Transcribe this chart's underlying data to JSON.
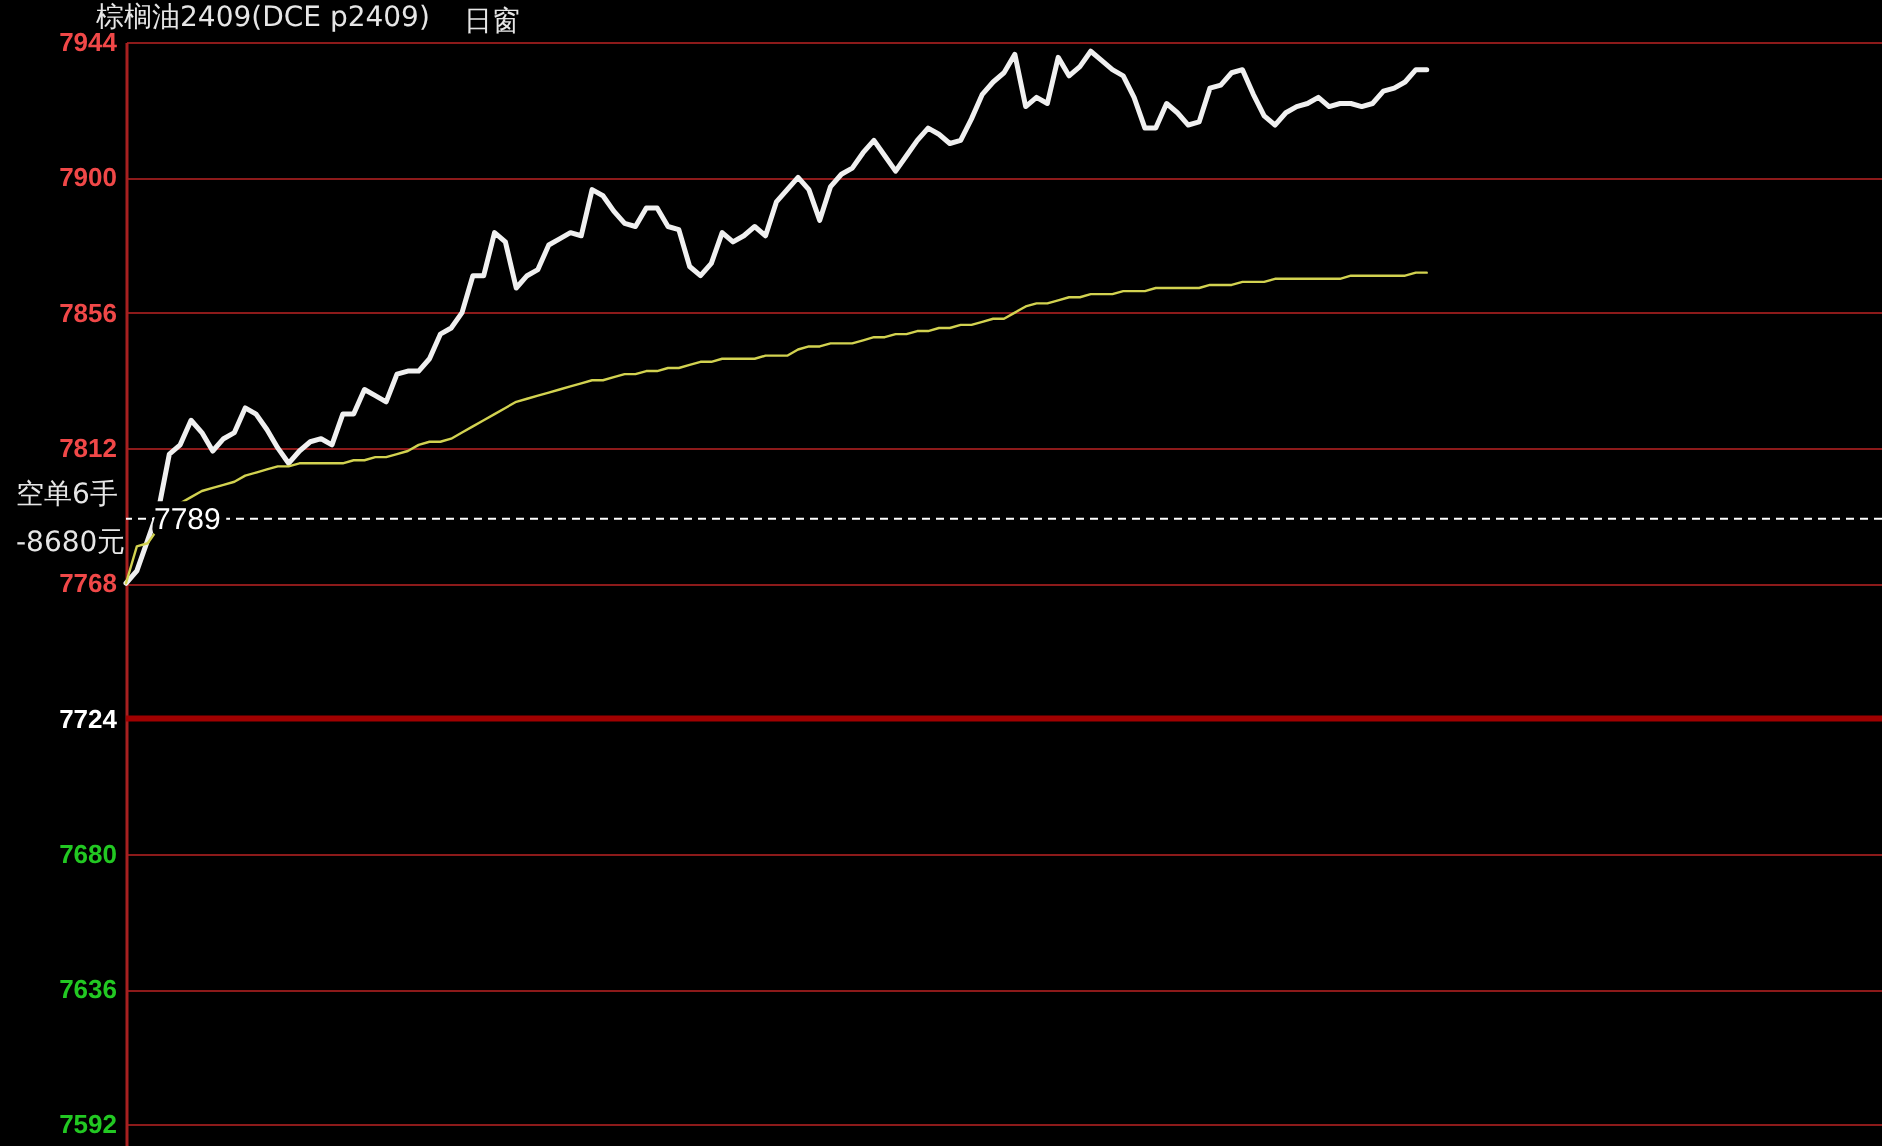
{
  "chart_data": {
    "type": "line",
    "title": "棕榈油2409(DCE p2409)",
    "categories": [
      null,
      null,
      null,
      null,
      null,
      null,
      null,
      null,
      null,
      null,
      null,
      null,
      null,
      null,
      null,
      null,
      null,
      null,
      null,
      null,
      null,
      null,
      null,
      null,
      null,
      null,
      null,
      null,
      null,
      null,
      null,
      null,
      null,
      null,
      null,
      null,
      null,
      null,
      null,
      null,
      null,
      null,
      null,
      null,
      null,
      null,
      null,
      null,
      null,
      null,
      null,
      null,
      null,
      null,
      null,
      null,
      null,
      null,
      null,
      null,
      null,
      null,
      null,
      null,
      null,
      null,
      null,
      null,
      null,
      null,
      null,
      null,
      null,
      null,
      null,
      null,
      null,
      null,
      null,
      null,
      null,
      null,
      null,
      null,
      null,
      null,
      null,
      null,
      null,
      null,
      null,
      null,
      null,
      null,
      null,
      null,
      null,
      null,
      null,
      null,
      null,
      null,
      null,
      null,
      null,
      null,
      null,
      null,
      null,
      null,
      null,
      null,
      null,
      null,
      null,
      null,
      null,
      null,
      null,
      null,
      null,
      null,
      null,
      null,
      null,
      null,
      null,
      null,
      null,
      null,
      null,
      null,
      null,
      null,
      null,
      null,
      null,
      null,
      null,
      null,
      null,
      null,
      null,
      null,
      null,
      null,
      null,
      null,
      null,
      null,
      null,
      null,
      null,
      null,
      null,
      null,
      null,
      null,
      null,
      null,
      null,
      null,
      null
    ],
    "series": [
      {
        "color": "#f0f0f0",
        "values": [
          7768,
          7772,
          7782,
          7792,
          7810,
          7813,
          7821,
          7817,
          7811,
          7815,
          7817,
          7825,
          7823,
          7818,
          7812,
          7807,
          7811,
          7814,
          7815,
          7813,
          7823,
          7823,
          7831,
          7829,
          7827,
          7836,
          7837,
          7837,
          7841,
          7849,
          7851,
          7856,
          7868,
          7868,
          7882,
          7879,
          7864,
          7868,
          7870,
          7878,
          7880,
          7882,
          7881,
          7896,
          7894,
          7889,
          7885,
          7884,
          7890,
          7890,
          7884,
          7883,
          7871,
          7868,
          7872,
          7882,
          7879,
          7881,
          7884,
          7881,
          7892,
          7896,
          7900,
          7896,
          7886,
          7897,
          7901,
          7903,
          7908,
          7912,
          7907,
          7902,
          7907,
          7912,
          7916,
          7914,
          7911,
          7912,
          7919,
          7927,
          7931,
          7934,
          7940,
          7923,
          7926,
          7924,
          7939,
          7933,
          7936,
          7941,
          7938,
          7935,
          7933,
          7926,
          7916,
          7916,
          7924,
          7921,
          7917,
          7918,
          7929,
          7930,
          7934,
          7935,
          7927,
          7920,
          7917,
          7921,
          7923,
          7924,
          7926,
          7923,
          7924,
          7924,
          7923,
          7924,
          7928,
          7929,
          7931,
          7935,
          7935,
          null,
          null,
          null,
          null,
          null,
          null,
          null,
          null,
          null,
          null,
          null,
          null,
          null,
          null,
          null,
          null,
          null,
          null,
          null,
          null,
          null,
          null,
          null,
          null,
          null,
          null,
          null,
          null,
          null,
          null,
          null,
          null,
          null,
          null,
          null,
          null,
          null,
          null,
          null,
          null,
          null,
          null
        ]
      },
      {
        "color": "#d2d250",
        "values": [
          7768,
          7780,
          7781,
          7786,
          7791,
          7794,
          7796,
          7798,
          7799,
          7800,
          7801,
          7803,
          7804,
          7805,
          7806,
          7806,
          7807,
          7807,
          7807,
          7807,
          7807,
          7808,
          7808,
          7809,
          7809,
          7810,
          7811,
          7813,
          7814,
          7814,
          7815,
          7817,
          7819,
          7821,
          7823,
          7825,
          7827,
          7828,
          7829,
          7830,
          7831,
          7832,
          7833,
          7834,
          7834,
          7835,
          7836,
          7836,
          7837,
          7837,
          7838,
          7838,
          7839,
          7840,
          7840,
          7841,
          7841,
          7841,
          7841,
          7842,
          7842,
          7842,
          7844,
          7845,
          7845,
          7846,
          7846,
          7846,
          7847,
          7848,
          7848,
          7849,
          7849,
          7850,
          7850,
          7851,
          7851,
          7852,
          7852,
          7853,
          7854,
          7854,
          7856,
          7858,
          7859,
          7859,
          7860,
          7861,
          7861,
          7862,
          7862,
          7862,
          7863,
          7863,
          7863,
          7864,
          7864,
          7864,
          7864,
          7864,
          7865,
          7865,
          7865,
          7866,
          7866,
          7866,
          7867,
          7867,
          7867,
          7867,
          7867,
          7867,
          7867,
          7868,
          7868,
          7868,
          7868,
          7868,
          7868,
          7869,
          7869,
          null,
          null,
          null,
          null,
          null,
          null,
          null,
          null,
          null,
          null,
          null,
          null,
          null,
          null,
          null,
          null,
          null,
          null,
          null,
          null,
          null,
          null,
          null,
          null,
          null,
          null,
          null,
          null,
          null,
          null,
          null,
          null,
          null,
          null,
          null,
          null,
          null,
          null,
          null,
          null,
          null,
          null
        ]
      }
    ],
    "ylim": [
      7585,
      7944
    ],
    "yticks": [
      7592,
      7636,
      7680,
      7724,
      7768,
      7812,
      7856,
      7900,
      7944
    ],
    "grid": "y",
    "line_style": "solid",
    "ref_lines": [
      {
        "axis": "y",
        "value": 7789,
        "label": "7789",
        "color": "#ffffff",
        "line_style": "dashed"
      },
      {
        "axis": "y",
        "value": 7724,
        "color": "#a00000",
        "line_style": "solid"
      }
    ],
    "annotations": [
      "日窗",
      "空单6手",
      "-8680元"
    ]
  }
}
